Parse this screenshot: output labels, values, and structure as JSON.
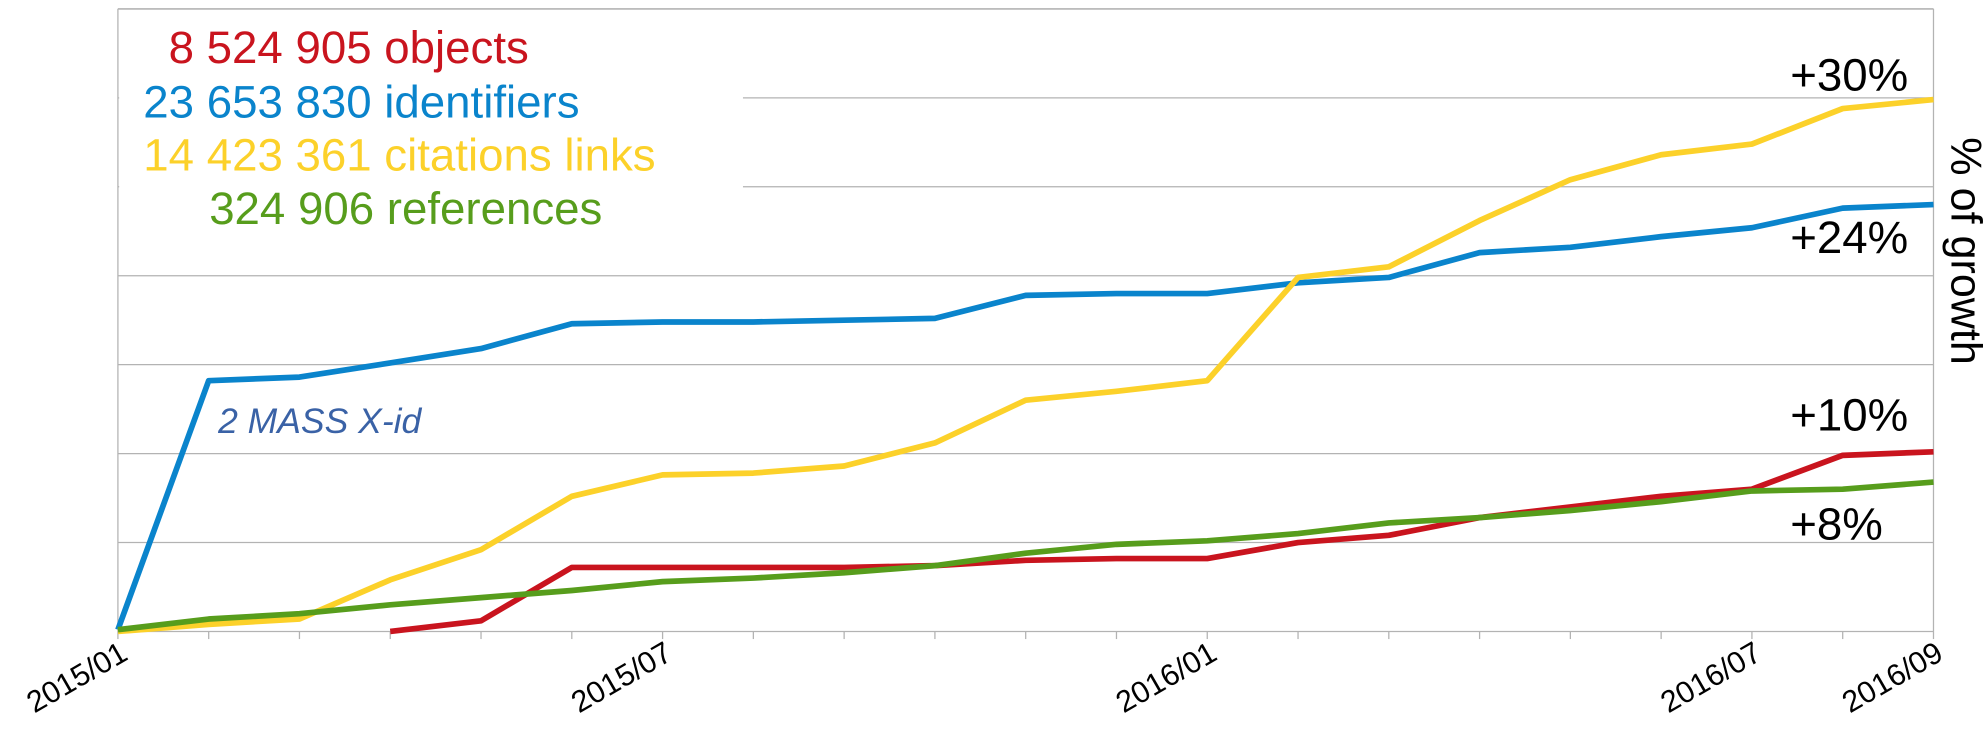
{
  "chart_data": {
    "type": "line",
    "y_axis_label": "% of growth",
    "categories": [
      "2015/01",
      null,
      null,
      null,
      null,
      null,
      "2015/07",
      null,
      null,
      null,
      null,
      null,
      "2016/01",
      null,
      null,
      null,
      null,
      null,
      "2016/07",
      null,
      "2016/09"
    ],
    "ylim": [
      0,
      35
    ],
    "yticks": [
      0,
      5,
      10,
      15,
      20,
      25,
      30,
      35
    ],
    "grid": true,
    "series": [
      {
        "name": "8 524 905 objects",
        "color": "#c9141e",
        "values": [
          null,
          null,
          null,
          0,
          0.6,
          3.6,
          3.6,
          3.6,
          3.6,
          3.7,
          4.0,
          4.1,
          4.1,
          5.0,
          5.4,
          6.4,
          7.0,
          7.6,
          8.0,
          9.9,
          10.1
        ]
      },
      {
        "name": "23 653 830 identifiers",
        "color": "#0a84cc",
        "values": [
          0.1,
          14.1,
          14.3,
          15.1,
          15.9,
          17.3,
          17.4,
          17.4,
          17.5,
          17.6,
          18.9,
          19.0,
          19.0,
          19.6,
          19.9,
          21.3,
          21.6,
          22.2,
          22.7,
          23.8,
          24.0
        ]
      },
      {
        "name": "14 423 361 citations links",
        "color": "#fcd12a",
        "values": [
          0,
          0.4,
          0.7,
          2.9,
          4.6,
          7.6,
          8.8,
          8.9,
          9.3,
          10.6,
          13.0,
          13.5,
          14.1,
          19.9,
          20.5,
          23.1,
          25.4,
          26.8,
          27.4,
          29.4,
          29.9
        ]
      },
      {
        "name": "324 906 references",
        "color": "#579d1c",
        "values": [
          0.1,
          0.7,
          1.0,
          1.5,
          1.9,
          2.3,
          2.8,
          3.0,
          3.3,
          3.7,
          4.4,
          4.9,
          5.1,
          5.5,
          6.1,
          6.4,
          6.8,
          7.3,
          7.9,
          8.0,
          8.4
        ]
      }
    ],
    "annotations": [
      "+30%",
      "+24%",
      "+10%",
      "+8%",
      "2 MASS X-id"
    ]
  }
}
